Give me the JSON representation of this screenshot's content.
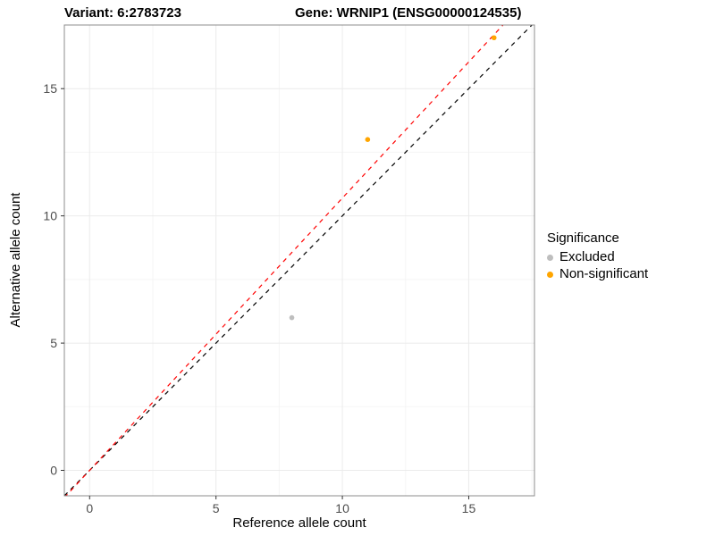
{
  "chart_data": {
    "type": "scatter",
    "title_left": "Variant: 6:2783723",
    "title_right": "Gene: WRNIP1 (ENSG00000124535)",
    "xlabel": "Reference allele count",
    "ylabel": "Alternative allele count",
    "xlim": [
      -1,
      17.6
    ],
    "ylim": [
      -1,
      17.5
    ],
    "xticks": [
      0,
      5,
      10,
      15
    ],
    "yticks": [
      0,
      5,
      10,
      15
    ],
    "minor_xticks": [
      2.5,
      7.5,
      12.5,
      17.5
    ],
    "minor_yticks": [
      2.5,
      7.5,
      12.5,
      17.5
    ],
    "grid": true,
    "legend_position": "right",
    "points": [
      {
        "x": 8,
        "y": 6,
        "series": "Excluded"
      },
      {
        "x": 11,
        "y": 13,
        "series": "Non-significant"
      },
      {
        "x": 16,
        "y": 17,
        "series": "Non-significant"
      }
    ],
    "lines": [
      {
        "name": "identity-line",
        "slope": 1.0,
        "intercept": 0,
        "color": "#000000",
        "dash": "5,5"
      },
      {
        "name": "fit-line",
        "slope": 1.07,
        "intercept": 0,
        "color": "#FF0000",
        "dash": "5,5"
      }
    ],
    "legend": {
      "title": "Significance",
      "items": [
        {
          "label": "Excluded",
          "color": "#BEBEBE"
        },
        {
          "label": "Non-significant",
          "color": "#FFA500"
        }
      ]
    },
    "series_colors": {
      "Excluded": "#BEBEBE",
      "Non-significant": "#FFA500"
    },
    "style": {
      "panel_bg": "#FFFFFF",
      "panel_border": "#8C8C8C",
      "grid_major": "#EBEBEB",
      "grid_minor": "#F5F5F5",
      "tick_color": "#333333",
      "point_radius": 2.8
    }
  }
}
